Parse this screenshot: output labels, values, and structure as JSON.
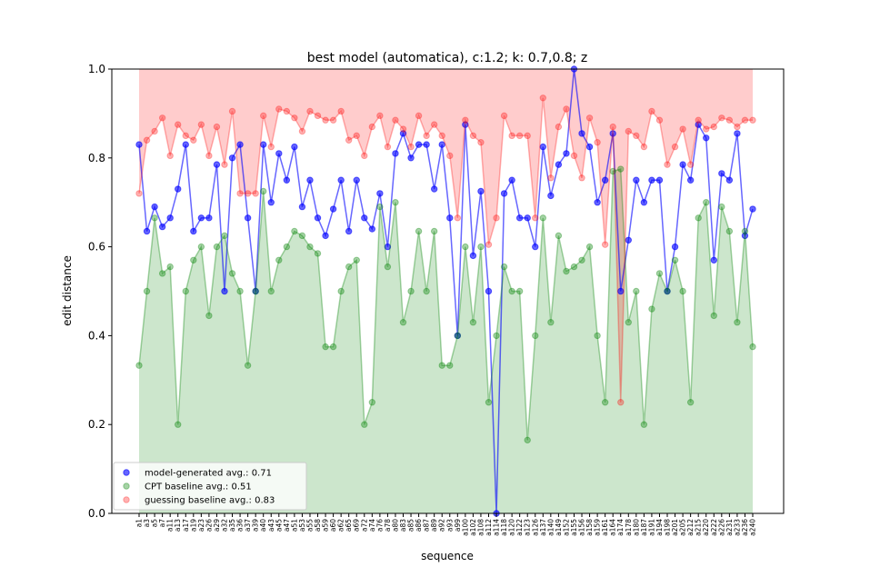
{
  "chart_data": {
    "type": "line",
    "title": "best model (automatica), c:1.2; k: 0.7,0.8; z",
    "x_label": "sequence",
    "y_label": "edit distance",
    "categories": [
      "a1",
      "a3",
      "a5",
      "a7",
      "a11",
      "a13",
      "a17",
      "a19",
      "a23",
      "a26",
      "a29",
      "a32",
      "a35",
      "a36",
      "a37",
      "a39",
      "a40",
      "a43",
      "a45",
      "a47",
      "a51",
      "a53",
      "a55",
      "a58",
      "a59",
      "a60",
      "a62",
      "a65",
      "a69",
      "a72",
      "a74",
      "a76",
      "a78",
      "a80",
      "a83",
      "a85",
      "a86",
      "a87",
      "a89",
      "a92",
      "a93",
      "a99",
      "a100",
      "a102",
      "a108",
      "a112",
      "a114",
      "a118",
      "a120",
      "a122",
      "a123",
      "a126",
      "a137",
      "a140",
      "a149",
      "a152",
      "a155",
      "a156",
      "a158",
      "a159",
      "a161",
      "a164",
      "a174",
      "a178",
      "a180",
      "a187",
      "a191",
      "a194",
      "a198",
      "a201",
      "a205",
      "a212",
      "a215",
      "a220",
      "a222",
      "a226",
      "a231",
      "a233",
      "a236",
      "a240"
    ],
    "series": [
      {
        "name": "model-generated avg.: 0.71",
        "color": "#0000ff",
        "values": [
          0.83,
          0.635,
          0.69,
          0.645,
          0.665,
          0.73,
          0.83,
          0.635,
          0.665,
          0.665,
          0.785,
          0.5,
          0.8,
          0.83,
          0.665,
          0.5,
          0.83,
          0.7,
          0.81,
          0.75,
          0.825,
          0.69,
          0.75,
          0.665,
          0.625,
          0.685,
          0.75,
          0.635,
          0.75,
          0.665,
          0.64,
          0.72,
          0.6,
          0.81,
          0.855,
          0.8,
          0.83,
          0.83,
          0.73,
          0.83,
          0.665,
          0.4,
          0.875,
          0.58,
          0.725,
          0.5,
          0.0,
          0.72,
          0.75,
          0.665,
          0.665,
          0.6,
          0.825,
          0.715,
          0.785,
          0.81,
          1.0,
          0.855,
          0.825,
          0.7,
          0.75,
          0.855,
          0.5,
          0.615,
          0.75,
          0.7,
          0.75,
          0.75,
          0.5,
          0.6,
          0.785,
          0.75,
          0.875,
          0.845,
          0.57,
          0.765,
          0.75,
          0.855,
          0.625,
          0.685
        ]
      },
      {
        "name": "CPT baseline avg.: 0.51",
        "color": "#008000",
        "values": [
          0.333,
          0.5,
          0.665,
          0.54,
          0.555,
          0.2,
          0.5,
          0.57,
          0.6,
          0.445,
          0.6,
          0.625,
          0.54,
          0.5,
          0.333,
          0.5,
          0.725,
          0.5,
          0.57,
          0.6,
          0.635,
          0.625,
          0.6,
          0.585,
          0.375,
          0.375,
          0.5,
          0.555,
          0.57,
          0.2,
          0.25,
          0.69,
          0.555,
          0.7,
          0.43,
          0.5,
          0.635,
          0.5,
          0.635,
          0.333,
          0.333,
          0.4,
          0.6,
          0.43,
          0.6,
          0.25,
          0.4,
          0.555,
          0.5,
          0.5,
          0.165,
          0.4,
          0.665,
          0.43,
          0.625,
          0.545,
          0.555,
          0.57,
          0.6,
          0.4,
          0.25,
          0.77,
          0.775,
          0.43,
          0.5,
          0.2,
          0.46,
          0.54,
          0.5,
          0.57,
          0.5,
          0.25,
          0.665,
          0.7,
          0.445,
          0.69,
          0.635,
          0.43,
          0.635,
          0.375
        ]
      },
      {
        "name": "guessing baseline avg.: 0.83",
        "color": "#ff0000",
        "values": [
          0.72,
          0.84,
          0.86,
          0.89,
          0.805,
          0.875,
          0.85,
          0.84,
          0.875,
          0.805,
          0.87,
          0.785,
          0.905,
          0.72,
          0.72,
          0.72,
          0.895,
          0.825,
          0.91,
          0.905,
          0.89,
          0.86,
          0.905,
          0.895,
          0.885,
          0.885,
          0.905,
          0.84,
          0.85,
          0.805,
          0.87,
          0.895,
          0.825,
          0.885,
          0.865,
          0.825,
          0.895,
          0.85,
          0.875,
          0.85,
          0.805,
          0.665,
          0.885,
          0.85,
          0.835,
          0.605,
          0.665,
          0.895,
          0.85,
          0.85,
          0.85,
          0.665,
          0.935,
          0.755,
          0.87,
          0.91,
          0.805,
          0.755,
          0.89,
          0.835,
          0.605,
          0.87,
          0.25,
          0.86,
          0.85,
          0.825,
          0.905,
          0.885,
          0.785,
          0.825,
          0.865,
          0.785,
          0.885,
          0.865,
          0.87,
          0.89,
          0.885,
          0.87,
          0.885,
          0.885
        ]
      }
    ],
    "ylim": [
      0,
      1
    ],
    "yticks": [
      {
        "value": 0,
        "label": "0.0"
      },
      {
        "value": 0.2,
        "label": "0.2"
      },
      {
        "value": 0.4,
        "label": "0.4"
      },
      {
        "value": 0.6,
        "label": "0.6"
      },
      {
        "value": 0.8,
        "label": "0.8"
      },
      {
        "value": 1,
        "label": "1.0"
      }
    ],
    "legend": "lower left"
  }
}
